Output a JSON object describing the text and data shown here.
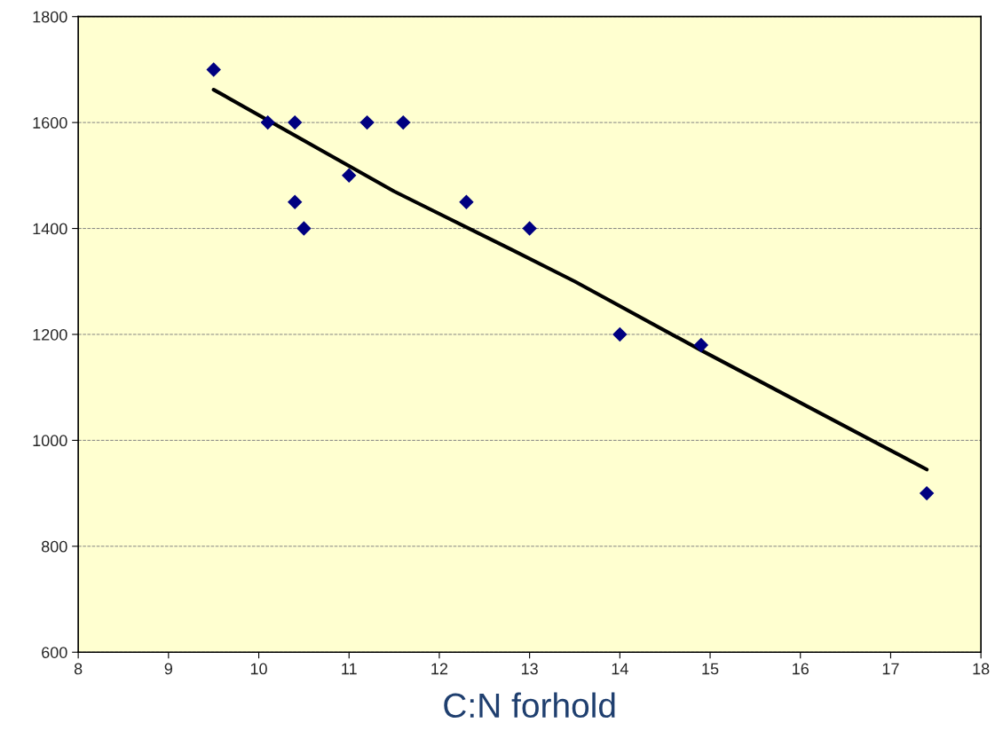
{
  "chart_data": {
    "type": "scatter",
    "xlabel": "C:N forhold",
    "xlim": [
      8,
      18
    ],
    "xticks": [
      8,
      9,
      10,
      11,
      12,
      13,
      14,
      15,
      16,
      17,
      18
    ],
    "ylim": [
      600,
      1800
    ],
    "yticks": [
      600,
      800,
      1000,
      1200,
      1400,
      1600,
      1800
    ],
    "grid": "y",
    "series": [
      {
        "type": "scatter",
        "color": "#000080",
        "marker": "diamond",
        "x": [
          9.5,
          10.1,
          10.4,
          10.4,
          10.5,
          11,
          11.2,
          11.6,
          12.3,
          13,
          14,
          14.9,
          17.4
        ],
        "values": [
          1700,
          1600,
          1600,
          1450,
          1400,
          1500,
          1600,
          1600,
          1450,
          1400,
          1200,
          1180,
          900
        ]
      },
      {
        "type": "line",
        "color": "#000000",
        "line_style": "solid",
        "x": [
          9.5,
          11.5,
          12.8,
          13.5,
          14.9,
          17.4
        ],
        "values": [
          1662,
          1470,
          1360,
          1300,
          1170,
          945
        ]
      }
    ]
  }
}
